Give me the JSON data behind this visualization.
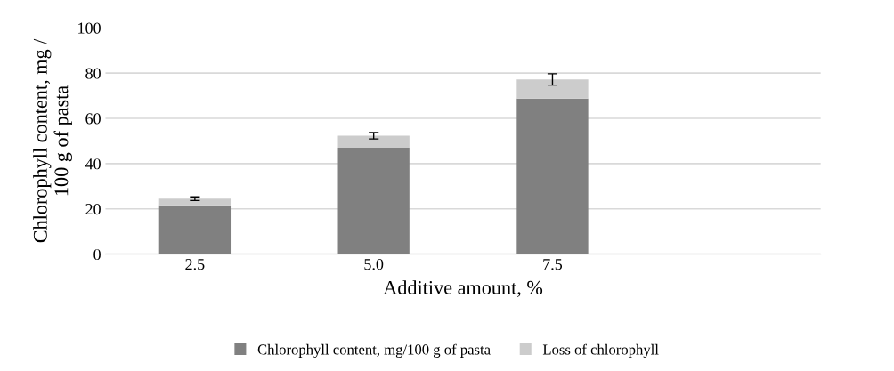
{
  "chart_data": {
    "type": "bar",
    "stacked": true,
    "xlabel": "Additive amount, %",
    "ylabel": "Chlorophyll content, mg /\n100 g of pasta",
    "categories": [
      "2.5",
      "5.0",
      "7.5",
      null
    ],
    "series": [
      {
        "name": "Chlorophyll content, mg/100 g of pasta",
        "color": "#808080",
        "values": [
          21.6,
          47.0,
          68.8,
          null
        ]
      },
      {
        "name": "Loss of chlorophyll",
        "color": "#cccccc",
        "values": [
          2.9,
          5.3,
          8.4,
          null
        ],
        "errors": [
          0.8,
          1.4,
          2.5,
          null
        ]
      }
    ],
    "ylim": [
      0,
      100
    ],
    "yticks": [
      0,
      20,
      40,
      60,
      80,
      100
    ],
    "grid": "y",
    "legend": "bottom"
  }
}
